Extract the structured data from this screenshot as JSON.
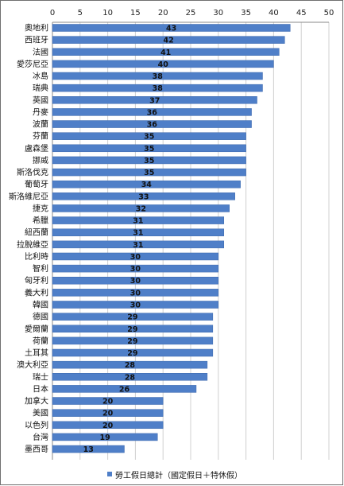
{
  "chart_data": {
    "type": "bar",
    "orientation": "horizontal",
    "title": "",
    "xlabel": "",
    "ylabel": "",
    "xlim": [
      0,
      50
    ],
    "xticks": [
      0,
      5,
      10,
      15,
      20,
      25,
      30,
      35,
      40,
      45,
      50
    ],
    "x_axis_position": "top",
    "grid": "vertical",
    "legend_position": "bottom-center",
    "bar_color": "#4f7fc8",
    "categories": [
      "奧地利",
      "西班牙",
      "法國",
      "愛莎尼亞",
      "冰島",
      "瑞典",
      "英國",
      "丹麥",
      "波蘭",
      "芬蘭",
      "盧森堡",
      "挪威",
      "斯洛伐克",
      "葡萄牙",
      "斯洛維尼亞",
      "捷克",
      "希臘",
      "紐西蘭",
      "拉脫維亞",
      "比利時",
      "智利",
      "匈牙利",
      "義大利",
      "韓國",
      "德國",
      "愛爾蘭",
      "荷蘭",
      "土耳其",
      "澳大利亞",
      "瑞士",
      "日本",
      "加拿大",
      "美國",
      "以色列",
      "台灣",
      "墨西哥"
    ],
    "series": [
      {
        "name": "勞工假日總計（國定假日＋特休假）",
        "values": [
          43,
          42,
          41,
          40,
          38,
          38,
          37,
          36,
          36,
          35,
          35,
          35,
          35,
          34,
          33,
          32,
          31,
          31,
          31,
          30,
          30,
          30,
          30,
          30,
          29,
          29,
          29,
          29,
          28,
          28,
          26,
          20,
          20,
          20,
          19,
          13
        ]
      }
    ]
  }
}
